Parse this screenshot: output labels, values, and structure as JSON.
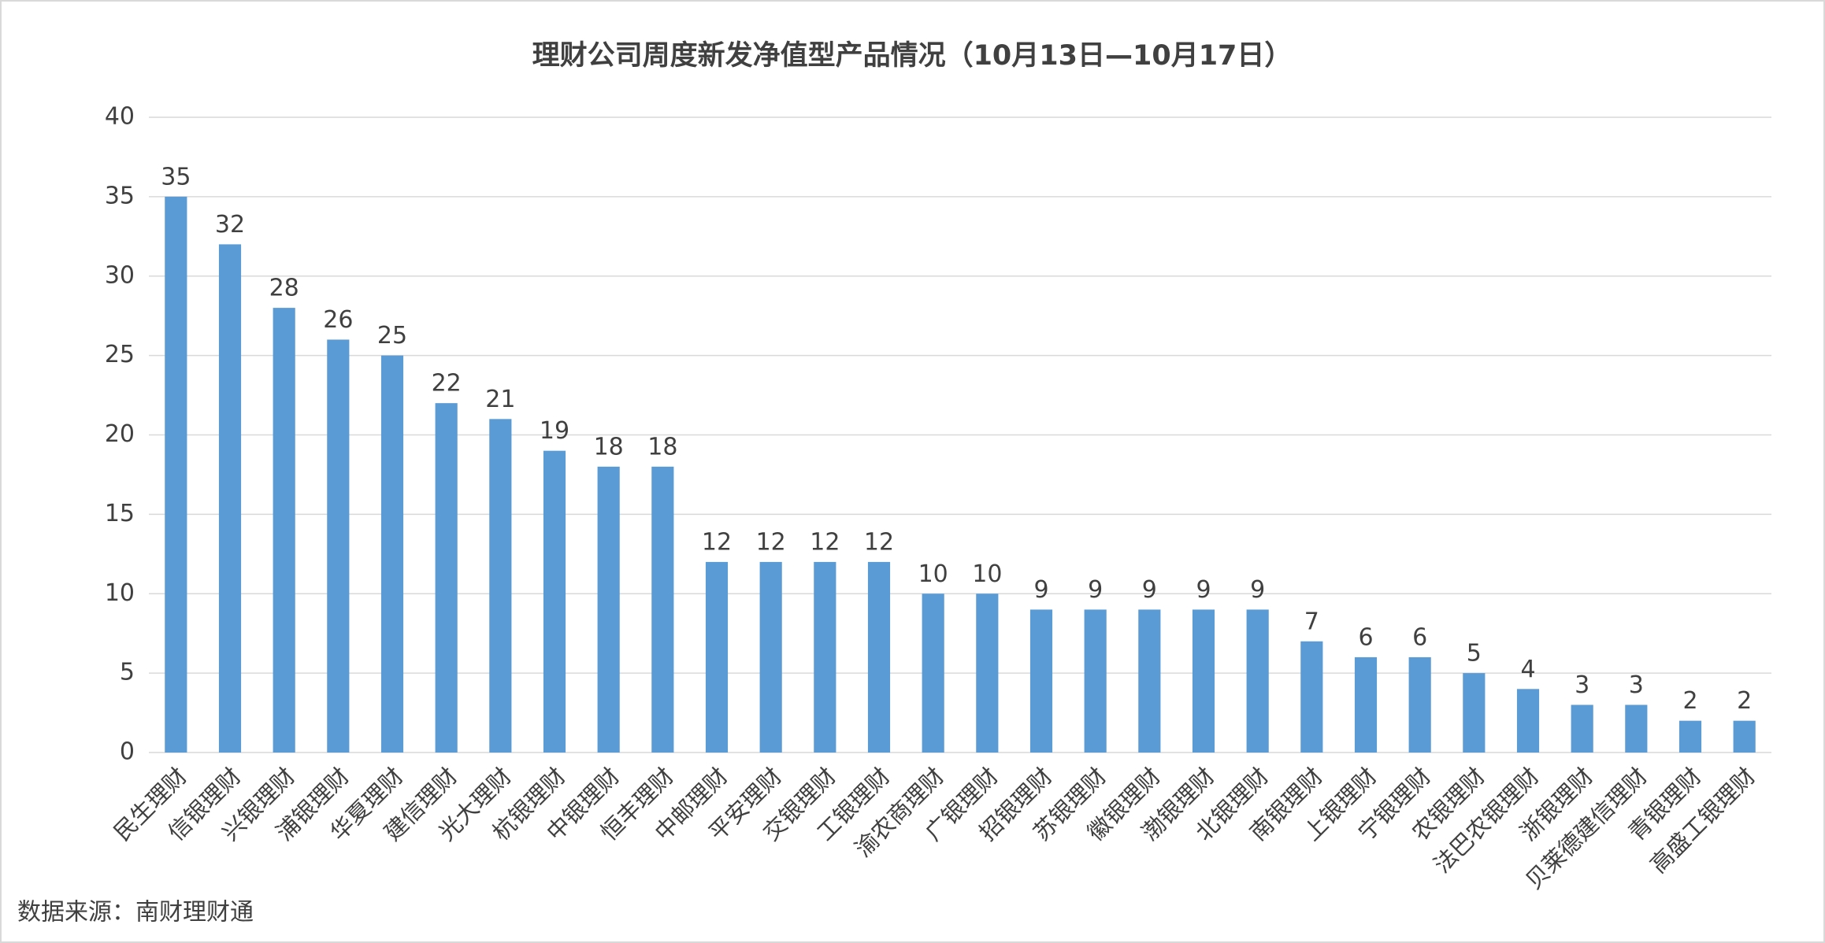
{
  "chart_data": {
    "type": "bar",
    "title": "理财公司周度新发净值型产品情况（10月13日—10月17日）",
    "source": "数据来源：南财理财通",
    "categories": [
      "民生理财",
      "信银理财",
      "兴银理财",
      "浦银理财",
      "华夏理财",
      "建信理财",
      "光大理财",
      "杭银理财",
      "中银理财",
      "恒丰理财",
      "中邮理财",
      "平安理财",
      "交银理财",
      "工银理财",
      "渝农商理财",
      "广银理财",
      "招银理财",
      "苏银理财",
      "徽银理财",
      "渤银理财",
      "北银理财",
      "南银理财",
      "上银理财",
      "宁银理财",
      "农银理财",
      "法巴农银理财",
      "浙银理财",
      "贝莱德建信理财",
      "青银理财",
      "高盛工银理财"
    ],
    "values": [
      35,
      32,
      28,
      26,
      25,
      22,
      21,
      19,
      18,
      18,
      12,
      12,
      12,
      12,
      10,
      10,
      9,
      9,
      9,
      9,
      9,
      7,
      6,
      6,
      5,
      4,
      3,
      3,
      2,
      2
    ],
    "color": "#5b9bd5",
    "ylim": [
      0,
      40
    ],
    "yticks": [
      0,
      5,
      10,
      15,
      20,
      25,
      30,
      35,
      40
    ],
    "grid": true
  }
}
